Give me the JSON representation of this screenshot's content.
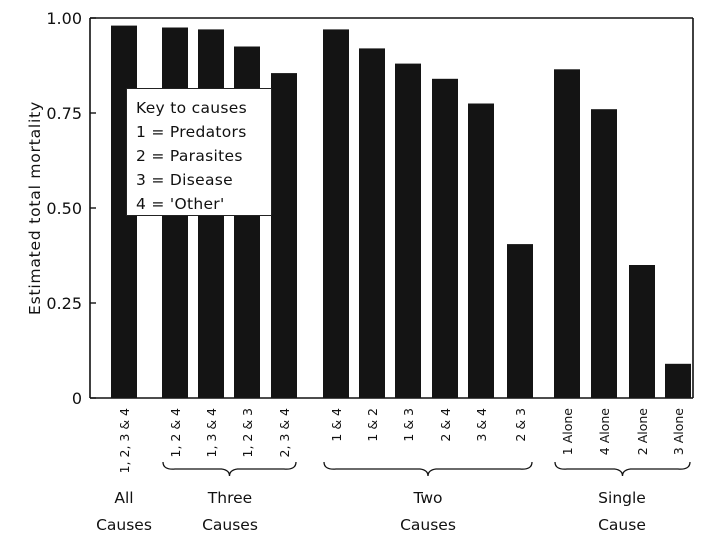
{
  "chart_data": {
    "type": "bar",
    "ylabel": "Estimated total mortality",
    "ylim": [
      0,
      1.0
    ],
    "yticks": [
      "0",
      "0.25",
      "0.50",
      "0.75",
      "1.00"
    ],
    "grid": false,
    "legend": {
      "placement": "top-left",
      "title": "Key to causes",
      "items": [
        "1 = Predators",
        "2 = Parasites",
        "3 = Disease",
        "4 = 'Other'"
      ]
    },
    "categories": [
      "1, 2, 3 & 4",
      "1, 2 & 4",
      "1, 3 & 4",
      "1, 2 & 3",
      "2, 3 & 4",
      "1 & 4",
      "1 & 2",
      "1 & 3",
      "2 & 4",
      "3 & 4",
      "2 & 3",
      "1 Alone",
      "4 Alone",
      "2 Alone",
      "3 Alone"
    ],
    "values": [
      0.98,
      0.975,
      0.97,
      0.925,
      0.855,
      0.97,
      0.92,
      0.88,
      0.84,
      0.775,
      0.405,
      0.865,
      0.76,
      0.35,
      0.09
    ],
    "groups": [
      {
        "line1": "All",
        "line2": "Causes",
        "count": 1
      },
      {
        "line1": "Three",
        "line2": "Causes",
        "count": 4
      },
      {
        "line1": "Two",
        "line2": "Causes",
        "count": 6
      },
      {
        "line1": "Single",
        "line2": "Cause",
        "count": 4
      }
    ],
    "bar_color": "#141414"
  }
}
